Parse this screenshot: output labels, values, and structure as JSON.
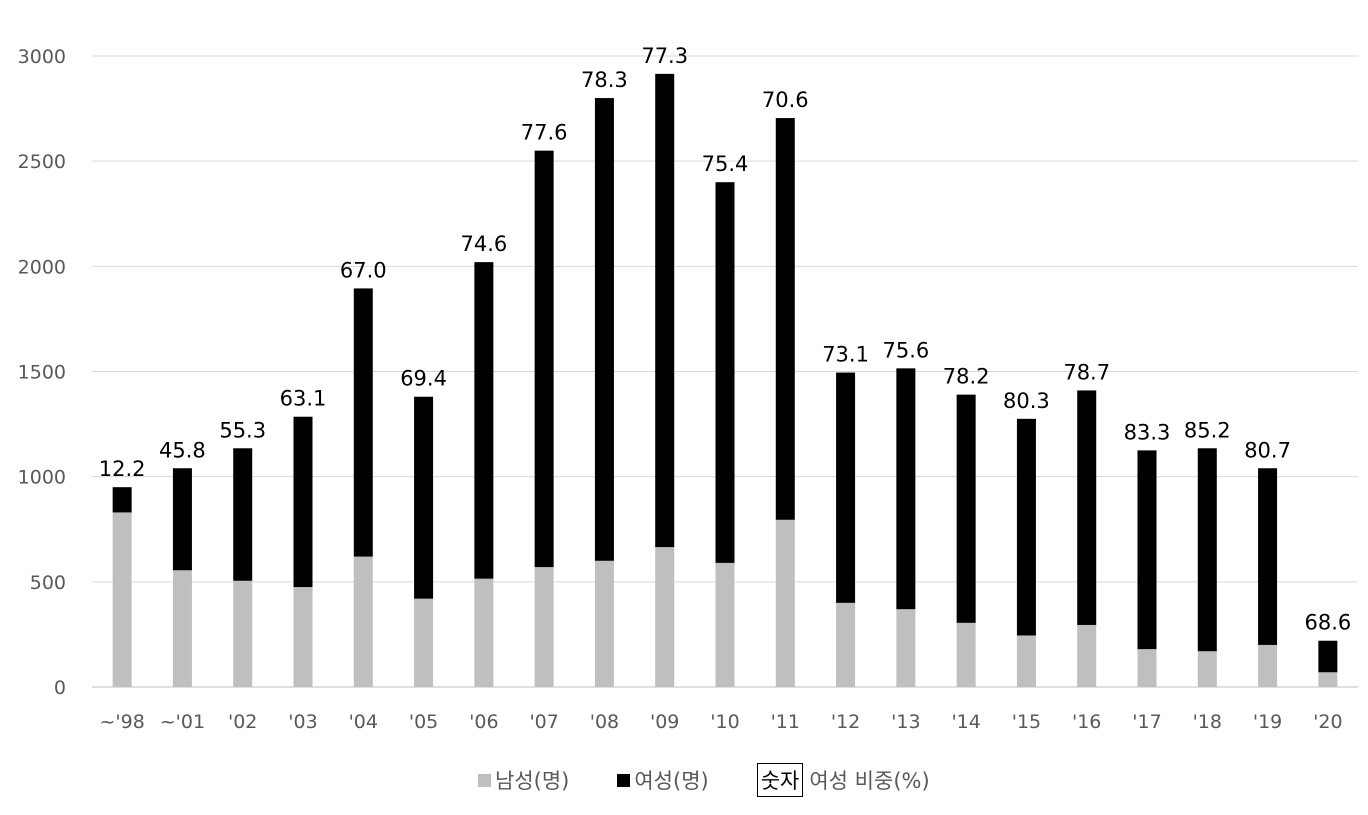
{
  "chart_data": {
    "type": "bar",
    "stacked": true,
    "categories": [
      "~'98",
      "~'01",
      "'02",
      "'03",
      "'04",
      "'05",
      "'06",
      "'07",
      "'08",
      "'09",
      "'10",
      "'11",
      "'12",
      "'13",
      "'14",
      "'15",
      "'16",
      "'17",
      "'18",
      "'19",
      "'20"
    ],
    "series": [
      {
        "name": "남성(명)",
        "color": "#bfbfbf",
        "values": [
          830,
          555,
          505,
          475,
          620,
          420,
          515,
          570,
          600,
          665,
          590,
          795,
          400,
          370,
          305,
          245,
          295,
          180,
          170,
          200,
          70
        ]
      },
      {
        "name": "여성(명)",
        "color": "#000000",
        "values": [
          120,
          485,
          630,
          810,
          1275,
          960,
          1505,
          1980,
          2200,
          2250,
          1810,
          1910,
          1095,
          1145,
          1085,
          1030,
          1115,
          945,
          965,
          840,
          150
        ]
      }
    ],
    "labels": [
      "12.2",
      "45.8",
      "55.3",
      "63.1",
      "67.0",
      "69.4",
      "74.6",
      "77.6",
      "78.3",
      "77.3",
      "75.4",
      "70.6",
      "73.1",
      "75.6",
      "78.2",
      "80.3",
      "78.7",
      "83.3",
      "85.2",
      "80.7",
      "68.6"
    ],
    "label_series_name": "여성 비중(%)",
    "label_marker": "숫자",
    "yticks": [
      "0",
      "500",
      "1000",
      "1500",
      "2000",
      "2500",
      "3000"
    ],
    "ylim": [
      0,
      3000
    ],
    "grid": true,
    "legend_position": "bottom",
    "title": "",
    "xlabel": "",
    "ylabel": ""
  }
}
